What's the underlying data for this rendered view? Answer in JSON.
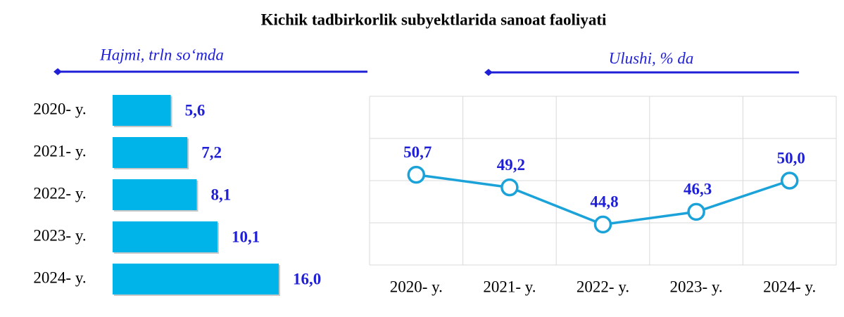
{
  "title": "Kichik tadbirkorlik subyektlarida sanoat faoliyati",
  "chart_data": [
    {
      "type": "hbar",
      "subtitle": "Hajmi, trln so‘mda",
      "categories": [
        "2020- y.",
        "2021- y.",
        "2022- y.",
        "2023- y.",
        "2024- y."
      ],
      "values": [
        5.6,
        7.2,
        8.1,
        10.1,
        16.0
      ],
      "value_labels": [
        "5,6",
        "7,2",
        "8,1",
        "10,1",
        "16,0"
      ],
      "color": "#00b4ea",
      "label_color": "#1f1fd8",
      "xlim": [
        0,
        16
      ]
    },
    {
      "type": "line",
      "subtitle": "Ulushi, % da",
      "categories": [
        "2020- y.",
        "2021- y.",
        "2022- y.",
        "2023- y.",
        "2024- y."
      ],
      "values": [
        50.7,
        49.2,
        44.8,
        46.3,
        50.0
      ],
      "value_labels": [
        "50,7",
        "49,2",
        "44,8",
        "46,3",
        "50,0"
      ],
      "color": "#1ba3d9",
      "label_color": "#1f1fd8",
      "ylim": [
        40,
        60
      ],
      "yticks": [
        40,
        45,
        50,
        55,
        60
      ],
      "grid": true
    }
  ]
}
